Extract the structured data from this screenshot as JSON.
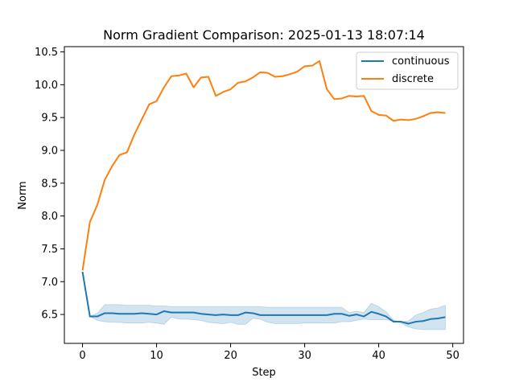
{
  "chart_data": {
    "type": "line",
    "title": "Norm Gradient Comparison: 2025-01-13 18:07:14",
    "xlabel": "Step",
    "ylabel": "Norm",
    "xlim": [
      -2.45,
      51.45
    ],
    "ylim": [
      6.06,
      10.58
    ],
    "xticks": [
      0,
      10,
      20,
      30,
      40,
      50
    ],
    "yticks": [
      6.5,
      7.0,
      7.5,
      8.0,
      8.5,
      9.0,
      9.5,
      10.0,
      10.5
    ],
    "ytick_labels": [
      "6.5",
      "7.0",
      "7.5",
      "8.0",
      "8.5",
      "9.0",
      "9.5",
      "10.0",
      "10.5"
    ],
    "grid": false,
    "legend_position": "top-right",
    "x": [
      0,
      1,
      2,
      3,
      4,
      5,
      6,
      7,
      8,
      9,
      10,
      11,
      12,
      13,
      14,
      15,
      16,
      17,
      18,
      19,
      20,
      21,
      22,
      23,
      24,
      25,
      26,
      27,
      28,
      29,
      30,
      31,
      32,
      33,
      34,
      35,
      36,
      37,
      38,
      39,
      40,
      41,
      42,
      43,
      44,
      45,
      46,
      47,
      48,
      49
    ],
    "series": [
      {
        "name": "continuous",
        "color": "#1f77b4",
        "values": [
          7.15,
          6.47,
          6.47,
          6.52,
          6.52,
          6.51,
          6.51,
          6.51,
          6.52,
          6.51,
          6.5,
          6.55,
          6.53,
          6.53,
          6.53,
          6.53,
          6.51,
          6.5,
          6.49,
          6.5,
          6.49,
          6.49,
          6.53,
          6.52,
          6.49,
          6.49,
          6.49,
          6.49,
          6.49,
          6.49,
          6.49,
          6.49,
          6.49,
          6.49,
          6.51,
          6.51,
          6.48,
          6.5,
          6.47,
          6.54,
          6.51,
          6.47,
          6.39,
          6.39,
          6.36,
          6.39,
          6.4,
          6.43,
          6.44,
          6.46
        ],
        "band_low": [
          7.15,
          6.47,
          6.41,
          6.39,
          6.38,
          6.38,
          6.37,
          6.37,
          6.37,
          6.38,
          6.37,
          6.35,
          6.46,
          6.43,
          6.43,
          6.42,
          6.41,
          6.38,
          6.37,
          6.36,
          6.38,
          6.35,
          6.35,
          6.44,
          6.43,
          6.38,
          6.36,
          6.36,
          6.36,
          6.36,
          6.37,
          6.37,
          6.37,
          6.37,
          6.37,
          6.39,
          6.39,
          6.41,
          6.43,
          6.42,
          6.42,
          6.42,
          6.4,
          6.37,
          6.31,
          6.28,
          6.27,
          6.27,
          6.27,
          6.27
        ],
        "band_high": [
          7.15,
          6.47,
          6.52,
          6.65,
          6.65,
          6.65,
          6.64,
          6.64,
          6.64,
          6.64,
          6.63,
          6.63,
          6.62,
          6.62,
          6.62,
          6.62,
          6.62,
          6.62,
          6.62,
          6.62,
          6.62,
          6.62,
          6.62,
          6.62,
          6.62,
          6.61,
          6.61,
          6.61,
          6.61,
          6.61,
          6.61,
          6.61,
          6.61,
          6.61,
          6.61,
          6.61,
          6.53,
          6.55,
          6.53,
          6.67,
          6.62,
          6.54,
          6.41,
          6.39,
          6.4,
          6.49,
          6.53,
          6.58,
          6.6,
          6.64
        ]
      },
      {
        "name": "discrete",
        "color": "#ff7f0e",
        "values": [
          7.17,
          7.91,
          8.17,
          8.55,
          8.76,
          8.93,
          8.97,
          9.24,
          9.47,
          9.7,
          9.75,
          9.96,
          10.13,
          10.14,
          10.17,
          9.96,
          10.11,
          10.12,
          9.83,
          9.89,
          9.93,
          10.03,
          10.05,
          10.11,
          10.19,
          10.18,
          10.12,
          10.13,
          10.16,
          10.2,
          10.28,
          10.29,
          10.36,
          9.93,
          9.78,
          9.79,
          9.83,
          9.82,
          9.83,
          9.6,
          9.54,
          9.53,
          9.45,
          9.47,
          9.46,
          9.48,
          9.52,
          9.57,
          9.58,
          9.57
        ]
      }
    ]
  }
}
